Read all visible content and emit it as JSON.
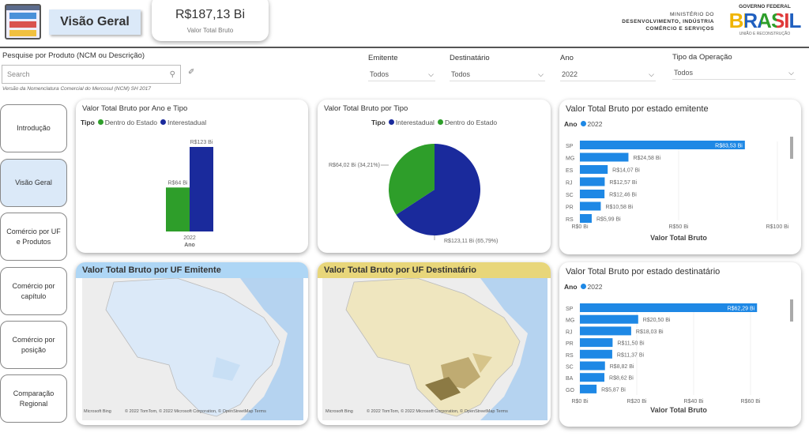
{
  "header": {
    "page_title": "Visão Geral",
    "kpi_value": "R$187,13 Bi",
    "kpi_label": "Valor Total Bruto",
    "ministry": [
      "MINISTÉRIO DO",
      "DESENVOLVIMENTO, INDÚSTRIA",
      "COMÉRCIO E SERVIÇOS"
    ],
    "gov_logo": {
      "top": "GOVERNO FEDERAL",
      "word": "BRASIL",
      "bottom": "UNIÃO E RECONSTRUÇÃO"
    }
  },
  "search": {
    "label": "Pesquise por Produto (NCM ou Descrição)",
    "placeholder": "Search",
    "note": "Versão da Nomenclatura Comercial do Mercosul (NCM) SH 2017"
  },
  "filters": [
    {
      "label": "Emitente",
      "value": "Todos"
    },
    {
      "label": "Destinatário",
      "value": "Todos"
    },
    {
      "label": "Ano",
      "value": "2022"
    },
    {
      "label": "Tipo da Operação",
      "value": "Todos"
    }
  ],
  "sidebar": {
    "items": [
      {
        "label": "Introdução"
      },
      {
        "label": "Visão Geral",
        "active": true
      },
      {
        "label": "Comércio por UF e Produtos"
      },
      {
        "label": "Comércio por capítulo"
      },
      {
        "label": "Comércio por posição"
      },
      {
        "label": "Comparação Regional"
      }
    ]
  },
  "colors": {
    "green": "#2e9e2a",
    "navy": "#1a2a9c",
    "bar_blue": "#1e88e5",
    "emit_header": "#aed6f5",
    "dest_header": "#e8d67a"
  },
  "chart_data": [
    {
      "type": "bar",
      "title": "Valor Total Bruto por Ano e Tipo",
      "legend_title": "Tipo",
      "categories": [
        "2022"
      ],
      "xlabel": "Ano",
      "series": [
        {
          "name": "Dentro do Estado",
          "values": [
            64
          ],
          "label": "R$64 Bi"
        },
        {
          "name": "Interestadual",
          "values": [
            123
          ],
          "label": "R$123 Bi"
        }
      ]
    },
    {
      "type": "pie",
      "title": "Valor Total Bruto por Tipo",
      "legend_title": "Tipo",
      "slices": [
        {
          "name": "Interestadual",
          "value": 123.11,
          "label": "R$123,11 Bi (65,79%)"
        },
        {
          "name": "Dentro do Estado",
          "value": 64.02,
          "label": "R$64,02 Bi (34,21%)"
        }
      ]
    },
    {
      "type": "bar",
      "orientation": "horizontal",
      "title": "Valor Total Bruto por estado emitente",
      "legend_title": "Ano",
      "series_name": "2022",
      "xlabel": "Valor Total Bruto",
      "xlim": [
        0,
        100
      ],
      "ticks": [
        "R$0 Bi",
        "R$50 Bi",
        "R$100 Bi"
      ],
      "categories": [
        "SP",
        "MG",
        "ES",
        "RJ",
        "SC",
        "PR",
        "RS"
      ],
      "values": [
        83.53,
        24.58,
        14.07,
        12.57,
        12.46,
        10.58,
        5.99
      ],
      "labels": [
        "R$83,53 Bi",
        "R$24,58 Bi",
        "R$14,07 Bi",
        "R$12,57 Bi",
        "R$12,46 Bi",
        "R$10,58 Bi",
        "R$5,99 Bi"
      ]
    },
    {
      "type": "bar",
      "orientation": "horizontal",
      "title": "Valor Total Bruto por estado destinatário",
      "legend_title": "Ano",
      "series_name": "2022",
      "xlabel": "Valor Total Bruto",
      "xlim": [
        0,
        60
      ],
      "ticks": [
        "R$0 Bi",
        "R$20 Bi",
        "R$40 Bi",
        "R$60 Bi"
      ],
      "categories": [
        "SP",
        "MG",
        "RJ",
        "PR",
        "RS",
        "SC",
        "BA",
        "GO"
      ],
      "values": [
        62.29,
        20.5,
        18.03,
        11.5,
        11.37,
        8.82,
        8.62,
        5.87
      ],
      "labels": [
        "R$62,29 Bi",
        "R$20,50 Bi",
        "R$18,03 Bi",
        "R$11,50 Bi",
        "R$11,37 Bi",
        "R$8,82 Bi",
        "R$8,62 Bi",
        "R$5,87 Bi"
      ]
    }
  ],
  "maps": [
    {
      "title": "Valor Total Bruto por UF Emitente"
    },
    {
      "title": "Valor Total Bruto por UF Destinatário"
    }
  ],
  "map_attribution": {
    "brand": "Microsoft Bing",
    "text": "© 2022 TomTom, © 2022 Microsoft Corporation, © OpenStreetMap  Terms"
  }
}
